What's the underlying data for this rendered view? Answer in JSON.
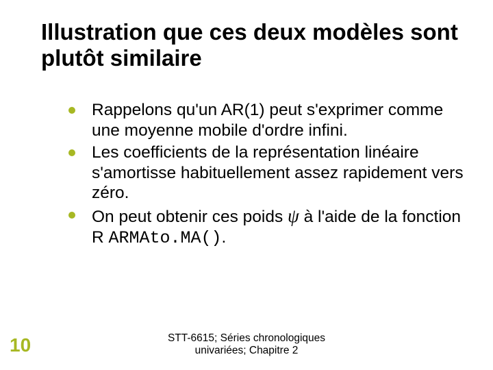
{
  "accent_color": "#a7b823",
  "page_number_color": "#a7b823",
  "title": "Illustration que ces deux modèles sont plutôt similaire",
  "bullets": [
    {
      "text": "Rappelons qu'un AR(1) peut s'exprimer comme une moyenne mobile d'ordre infini."
    },
    {
      "text": "Les coefficients de la représentation linéaire s'amortisse habituellement assez rapidement vers zéro."
    },
    {
      "pre": "On peut obtenir ces poids ",
      "sym": "ψ",
      "mid": " à l'aide de la fonction R ",
      "code": "ARMAto.MA()",
      "post": "."
    }
  ],
  "page_number": "10",
  "footer_line1": "STT-6615; Séries chronologiques",
  "footer_line2": "univariées; Chapitre 2"
}
